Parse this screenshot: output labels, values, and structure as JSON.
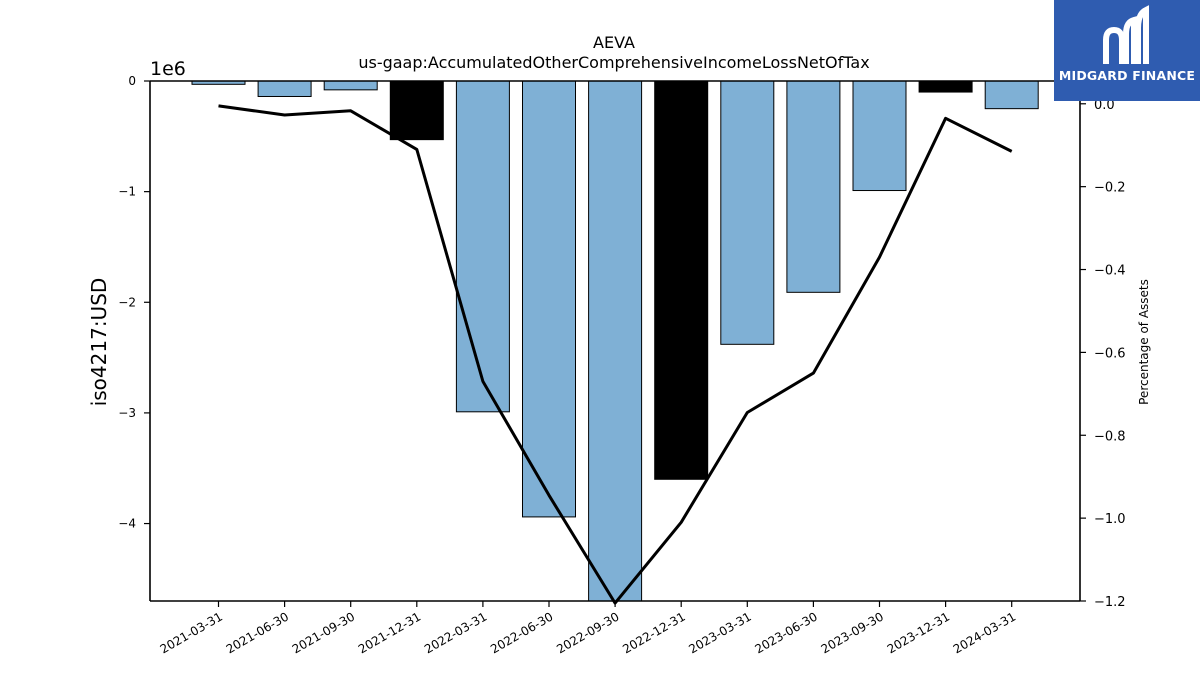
{
  "chart_data": {
    "type": "bar",
    "title": "AEVA",
    "subtitle": "us-gaap:AccumulatedOtherComprehensiveIncomeLossNetOfTax",
    "ylabel": "iso4217:USD",
    "y2label": "Percentage of Assets",
    "offset_text": "1e6",
    "categories": [
      "2021-03-31",
      "2021-06-30",
      "2021-09-30",
      "2021-12-31",
      "2022-03-31",
      "2022-06-30",
      "2022-09-30",
      "2022-12-31",
      "2023-03-31",
      "2023-06-30",
      "2023-09-30",
      "2023-12-31",
      "2024-03-31"
    ],
    "series": [
      {
        "type": "bar",
        "values": [
          -0.03,
          -0.14,
          -0.08,
          -0.53,
          -2.99,
          -3.94,
          -4.7,
          -3.6,
          -2.38,
          -1.91,
          -0.99,
          -0.1,
          -0.25
        ],
        "colors": [
          "#7fb0d5",
          "#7fb0d5",
          "#7fb0d5",
          "#000000",
          "#7fb0d5",
          "#7fb0d5",
          "#7fb0d5",
          "#000000",
          "#7fb0d5",
          "#7fb0d5",
          "#7fb0d5",
          "#000000",
          "#7fb0d5"
        ]
      },
      {
        "type": "line",
        "axis": "right",
        "color": "#000000",
        "values": [
          -0.005,
          -0.027,
          -0.017,
          -0.11,
          -0.67,
          -0.945,
          -1.205,
          -1.01,
          -0.745,
          -0.65,
          -0.37,
          -0.035,
          -0.115
        ]
      }
    ],
    "yticks": [
      0,
      -1,
      -2,
      -3,
      -4
    ],
    "ytick_labels": [
      "0",
      "−1",
      "−2",
      "−3",
      "−4"
    ],
    "ylim": [
      -4.7,
      0
    ],
    "y2ticks": [
      0.0,
      -0.2,
      -0.4,
      -0.6,
      -0.8,
      -1.0,
      -1.2
    ],
    "y2tick_labels": [
      "0.0",
      "−0.2",
      "−0.4",
      "−0.6",
      "−0.8",
      "−1.0",
      "−1.2"
    ],
    "y2lim": [
      -1.2,
      0.055
    ],
    "grid": false,
    "legend": "none"
  },
  "logo": {
    "text": "MIDGARD FINANCE",
    "background": "#2f5cb0"
  }
}
